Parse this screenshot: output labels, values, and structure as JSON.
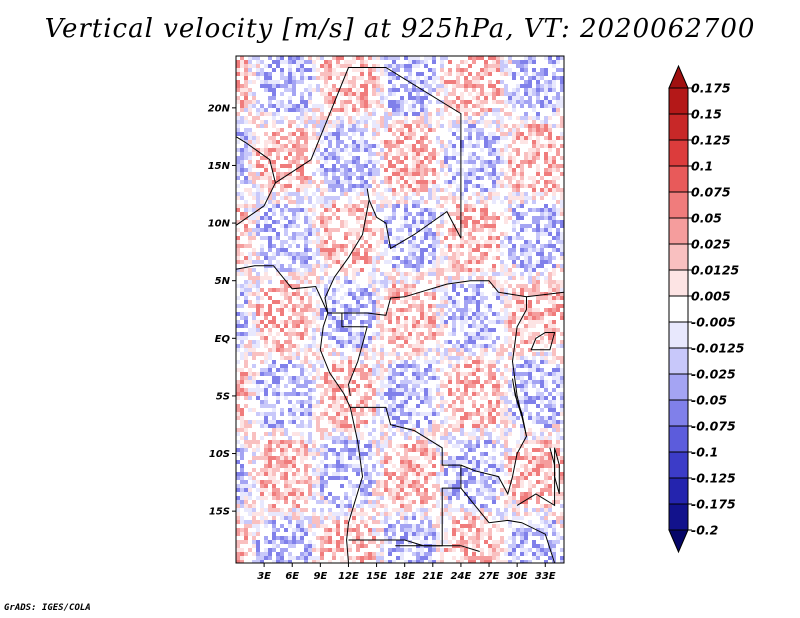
{
  "title": "Vertical velocity [m/s] at 925hPa, VT: 2020062700",
  "credit": "GrADS: IGES/COLA",
  "map": {
    "lat_labels": [
      "20N",
      "15N",
      "10N",
      "5N",
      "EQ",
      "5S",
      "10S",
      "15S"
    ],
    "lat_values": [
      20,
      15,
      10,
      5,
      0,
      -5,
      -10,
      -15
    ],
    "lon_labels": [
      "3E",
      "6E",
      "9E",
      "12E",
      "15E",
      "18E",
      "21E",
      "24E",
      "27E",
      "30E",
      "33E"
    ],
    "lon_values": [
      3,
      6,
      9,
      12,
      15,
      18,
      21,
      24,
      27,
      30,
      33
    ],
    "lon_range": [
      0,
      35
    ],
    "lat_range": [
      -19.5,
      24.5
    ]
  },
  "colorbar": {
    "labels": [
      "0.175",
      "0.15",
      "0.125",
      "0.1",
      "0.075",
      "0.05",
      "0.025",
      "0.0125",
      "0.005",
      "-0.005",
      "-0.0125",
      "-0.025",
      "-0.05",
      "-0.075",
      "-0.1",
      "-0.125",
      "-0.175",
      "-0.2"
    ],
    "colors": [
      "#a01010",
      "#b41818",
      "#c82828",
      "#dc3c3c",
      "#e85a5a",
      "#f07c7c",
      "#f59d9d",
      "#f9c0c0",
      "#fde4e4",
      "#ffffff",
      "#e8e8fd",
      "#c8c8fa",
      "#a4a4f3",
      "#8080ea",
      "#5c5cdc",
      "#3c3cc8",
      "#2424ae",
      "#12128c",
      "#060668"
    ]
  }
}
